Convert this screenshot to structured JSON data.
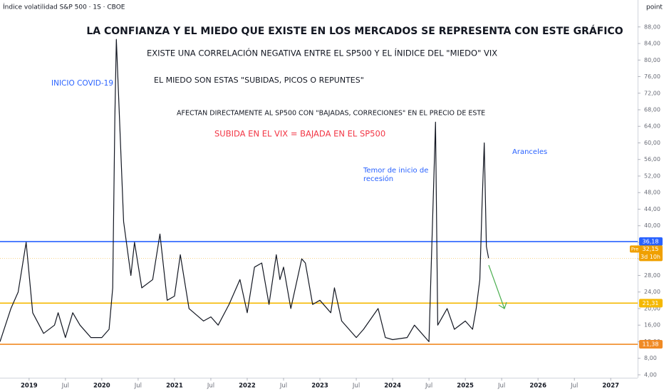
{
  "chart_data": {
    "type": "line",
    "header": "Índice volatilidad S&P 500 · 1S · CBOE",
    "unit_label": "point",
    "title": "LA CONFIANZA Y EL MIEDO QUE EXISTE EN LOS MERCADOS SE REPRESENTA CON ESTE GRÁFICO",
    "annotations": [
      "EXISTE UNA CORRELACIÓN NEGATIVA ENTRE EL SP500 Y EL ÍNIDICE DEL \"MIEDO\" VIX",
      "EL MIEDO SON ESTAS \"SUBIDAS, PICOS O REPUNTES\"",
      "INICIO COVID-19",
      "AFECTAN DIRECTAMENTE AL SP500 CON \"BAJADAS, CORRECIONES\" EN EL PRECIO DE ESTE",
      "SUBIDA EN EL VIX = BAJADA EN EL SP500",
      "Temor de inicio de",
      "recesión",
      "Aranceles"
    ],
    "x": [
      2018.6,
      2018.75,
      2018.85,
      2018.96,
      2019.05,
      2019.2,
      2019.35,
      2019.4,
      2019.5,
      2019.6,
      2019.7,
      2019.85,
      2020.0,
      2020.1,
      2020.15,
      2020.18,
      2020.2,
      2020.3,
      2020.4,
      2020.45,
      2020.55,
      2020.7,
      2020.8,
      2020.9,
      2021.0,
      2021.08,
      2021.2,
      2021.4,
      2021.5,
      2021.6,
      2021.75,
      2021.9,
      2022.0,
      2022.1,
      2022.2,
      2022.3,
      2022.4,
      2022.45,
      2022.5,
      2022.6,
      2022.75,
      2022.8,
      2022.9,
      2023.0,
      2023.15,
      2023.2,
      2023.3,
      2023.5,
      2023.6,
      2023.8,
      2023.9,
      2024.0,
      2024.2,
      2024.3,
      2024.5,
      2024.59,
      2024.62,
      2024.75,
      2024.85,
      2025.0,
      2025.1,
      2025.15,
      2025.2,
      2025.23,
      2025.26,
      2025.29,
      2025.32
    ],
    "series": [
      {
        "name": "VIX",
        "color": "#131722",
        "values": [
          12,
          20,
          24,
          36,
          19,
          14,
          16,
          19,
          13,
          19,
          16,
          13,
          13,
          15,
          25,
          66,
          85,
          41,
          28,
          36,
          25,
          27,
          38,
          22,
          23,
          33,
          20,
          17,
          18,
          16,
          21,
          27,
          19,
          30,
          31,
          21,
          33,
          27,
          30,
          20,
          32,
          31,
          21,
          22,
          19,
          25,
          17,
          13,
          15,
          20,
          13,
          12.5,
          13,
          16,
          12,
          65,
          16,
          20,
          15,
          17,
          15,
          20,
          27,
          45,
          60,
          35,
          32.15
        ]
      }
    ],
    "xlim": [
      2018.6,
      2027.37
    ],
    "xticks": [
      2019,
      {
        "value": 2019.5,
        "label": "Jul"
      },
      2020,
      {
        "value": 2020.5,
        "label": "Jul"
      },
      2021,
      {
        "value": 2021.5,
        "label": "Jul"
      },
      2022,
      {
        "value": 2022.5,
        "label": "Jul"
      },
      2023,
      {
        "value": 2023.5,
        "label": "Jul"
      },
      2024,
      {
        "value": 2024.5,
        "label": "Jul"
      },
      2025,
      {
        "value": 2025.5,
        "label": "Jul"
      },
      2026,
      {
        "value": 2026.5,
        "label": "Jul"
      },
      2027
    ],
    "ylim": [
      3.3,
      94.5
    ],
    "yticks": [
      {
        "value": 4,
        "label": "4,00"
      },
      {
        "value": 8,
        "label": "8,00"
      },
      {
        "value": 12,
        "label": "12,00"
      },
      {
        "value": 16,
        "label": "16,00"
      },
      {
        "value": 20,
        "label": "20,00"
      },
      {
        "value": 24,
        "label": "24,00"
      },
      {
        "value": 28,
        "label": "28,00"
      },
      {
        "value": 32,
        "label": "32,00"
      },
      {
        "value": 36,
        "label": "36,00"
      },
      {
        "value": 40,
        "label": "40,00"
      },
      {
        "value": 44,
        "label": "44,00"
      },
      {
        "value": 48,
        "label": "48,00"
      },
      {
        "value": 52,
        "label": "52,00"
      },
      {
        "value": 56,
        "label": "56,00"
      },
      {
        "value": 60,
        "label": "60,00"
      },
      {
        "value": 64,
        "label": "64,00"
      },
      {
        "value": 68,
        "label": "68,00"
      },
      {
        "value": 72,
        "label": "72,00"
      },
      {
        "value": 76,
        "label": "76,00"
      },
      {
        "value": 80,
        "label": "80,00"
      },
      {
        "value": 84,
        "label": "84,00"
      },
      {
        "value": 88,
        "label": "88,00"
      }
    ],
    "levels": [
      {
        "value": 36.18,
        "label": "36,18",
        "color": "#2962ff"
      },
      {
        "value": 21.31,
        "label": "21,31",
        "color": "#f5b800"
      },
      {
        "value": 11.38,
        "label": "11,38",
        "color": "#f08a24"
      }
    ],
    "last_price": {
      "value": 32.15,
      "label": "32,15",
      "tag": "Pre",
      "countdown": "3d 10h",
      "color": "#f0a000"
    }
  }
}
